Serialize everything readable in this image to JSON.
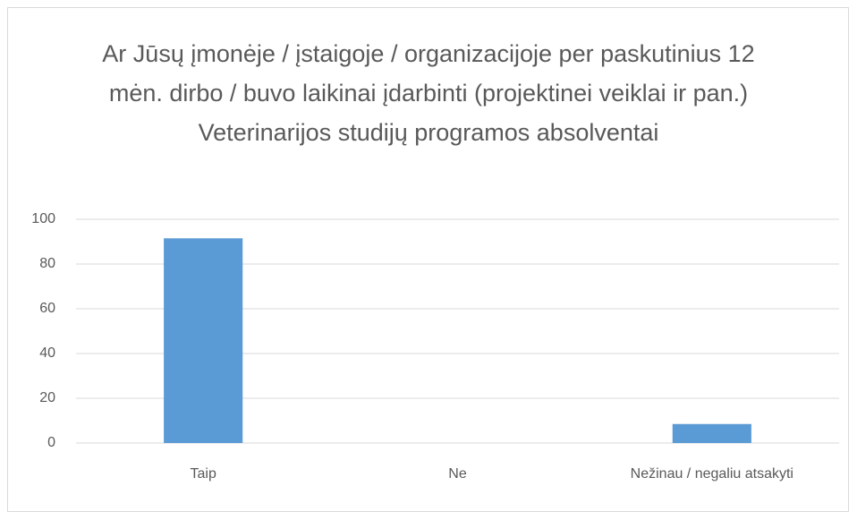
{
  "chart_data": {
    "type": "bar",
    "title": "Ar Jūsų įmonėje / įstaigoje / organizacijoje per paskutinius 12 mėn. dirbo / buvo laikinai įdarbinti (projektinei veiklai ir pan.) Veterinarijos studijų programos absolventai",
    "categories": [
      "Taip",
      "Ne",
      "Nežinau / negaliu atsakyti"
    ],
    "values": [
      91.5,
      0,
      8.5
    ],
    "color": "#5b9bd5",
    "ylim": [
      0,
      100
    ],
    "yticks": [
      0,
      20,
      40,
      60,
      80,
      100
    ],
    "grid": true
  }
}
